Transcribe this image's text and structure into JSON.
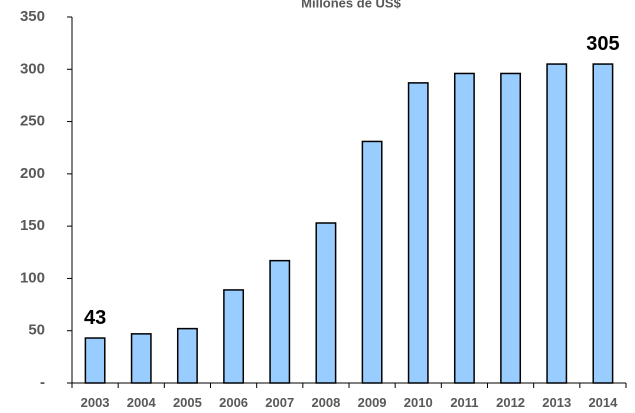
{
  "chart_data": {
    "type": "bar",
    "title": "Millones de US$",
    "xlabel": "",
    "ylabel": "",
    "categories": [
      "2003",
      "2004",
      "2005",
      "2006",
      "2007",
      "2008",
      "2009",
      "2010",
      "2011",
      "2012",
      "2013",
      "2014"
    ],
    "values": [
      43,
      47,
      52,
      89,
      117,
      153,
      231,
      287,
      296,
      296,
      305,
      305
    ],
    "ylim": [
      0,
      350
    ],
    "yticks": [
      {
        "value": 0,
        "label": "-"
      },
      {
        "value": 50,
        "label": "50"
      },
      {
        "value": 100,
        "label": "100"
      },
      {
        "value": 150,
        "label": "150"
      },
      {
        "value": 200,
        "label": "200"
      },
      {
        "value": 250,
        "label": "250"
      },
      {
        "value": 300,
        "label": "300"
      },
      {
        "value": 350,
        "label": "350"
      }
    ],
    "data_labels": [
      {
        "category": "2003",
        "text": "43"
      },
      {
        "category": "2014",
        "text": "305"
      }
    ],
    "grid": false,
    "legend": "none",
    "colors": {
      "bar_fill": "#99CCFF",
      "bar_stroke": "#000000",
      "axis": "#000000"
    }
  }
}
